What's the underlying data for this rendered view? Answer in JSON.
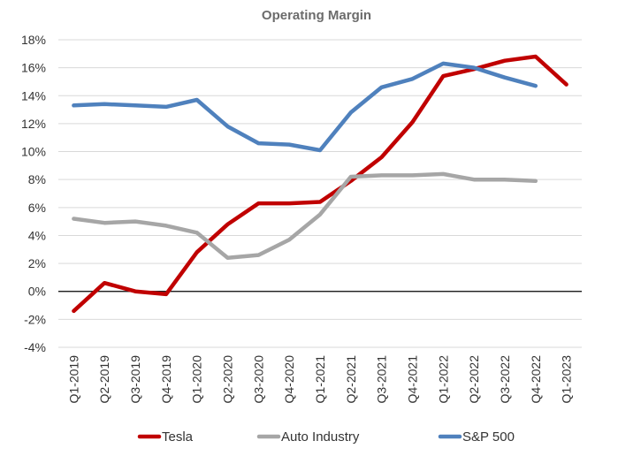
{
  "chart_data": {
    "type": "line",
    "title": "Operating Margin",
    "categories": [
      "Q1-2019",
      "Q2-2019",
      "Q3-2019",
      "Q4-2019",
      "Q1-2020",
      "Q2-2020",
      "Q3-2020",
      "Q4-2020",
      "Q1-2021",
      "Q2-2021",
      "Q3-2021",
      "Q4-2021",
      "Q1-2022",
      "Q2-2022",
      "Q3-2022",
      "Q4-2022",
      "Q1-2023"
    ],
    "ylim": [
      -4,
      18
    ],
    "yticks": [
      -4,
      -2,
      0,
      2,
      4,
      6,
      8,
      10,
      12,
      14,
      16,
      18
    ],
    "ytick_labels": [
      "-4%",
      "-2%",
      "0%",
      "2%",
      "4%",
      "6%",
      "8%",
      "10%",
      "12%",
      "14%",
      "16%",
      "18%"
    ],
    "grid": true,
    "legend": "bottom",
    "series": [
      {
        "name": "Tesla",
        "color": "#c00000",
        "values": [
          -1.4,
          0.6,
          0.0,
          -0.2,
          2.8,
          4.8,
          6.3,
          6.3,
          6.4,
          7.9,
          9.6,
          12.1,
          15.4,
          15.9,
          16.5,
          16.8,
          14.8
        ]
      },
      {
        "name": "Auto Industry",
        "color": "#a6a6a6",
        "values": [
          5.2,
          4.9,
          5.0,
          4.7,
          4.2,
          2.4,
          2.6,
          3.7,
          5.5,
          8.2,
          8.3,
          8.3,
          8.4,
          8.0,
          8.0,
          7.9,
          null
        ]
      },
      {
        "name": "S&P 500",
        "color": "#4f81bd",
        "values": [
          13.3,
          13.4,
          13.3,
          13.2,
          13.7,
          11.8,
          10.6,
          10.5,
          10.1,
          12.8,
          14.6,
          15.2,
          16.3,
          16.0,
          15.3,
          14.7,
          null
        ]
      }
    ]
  }
}
